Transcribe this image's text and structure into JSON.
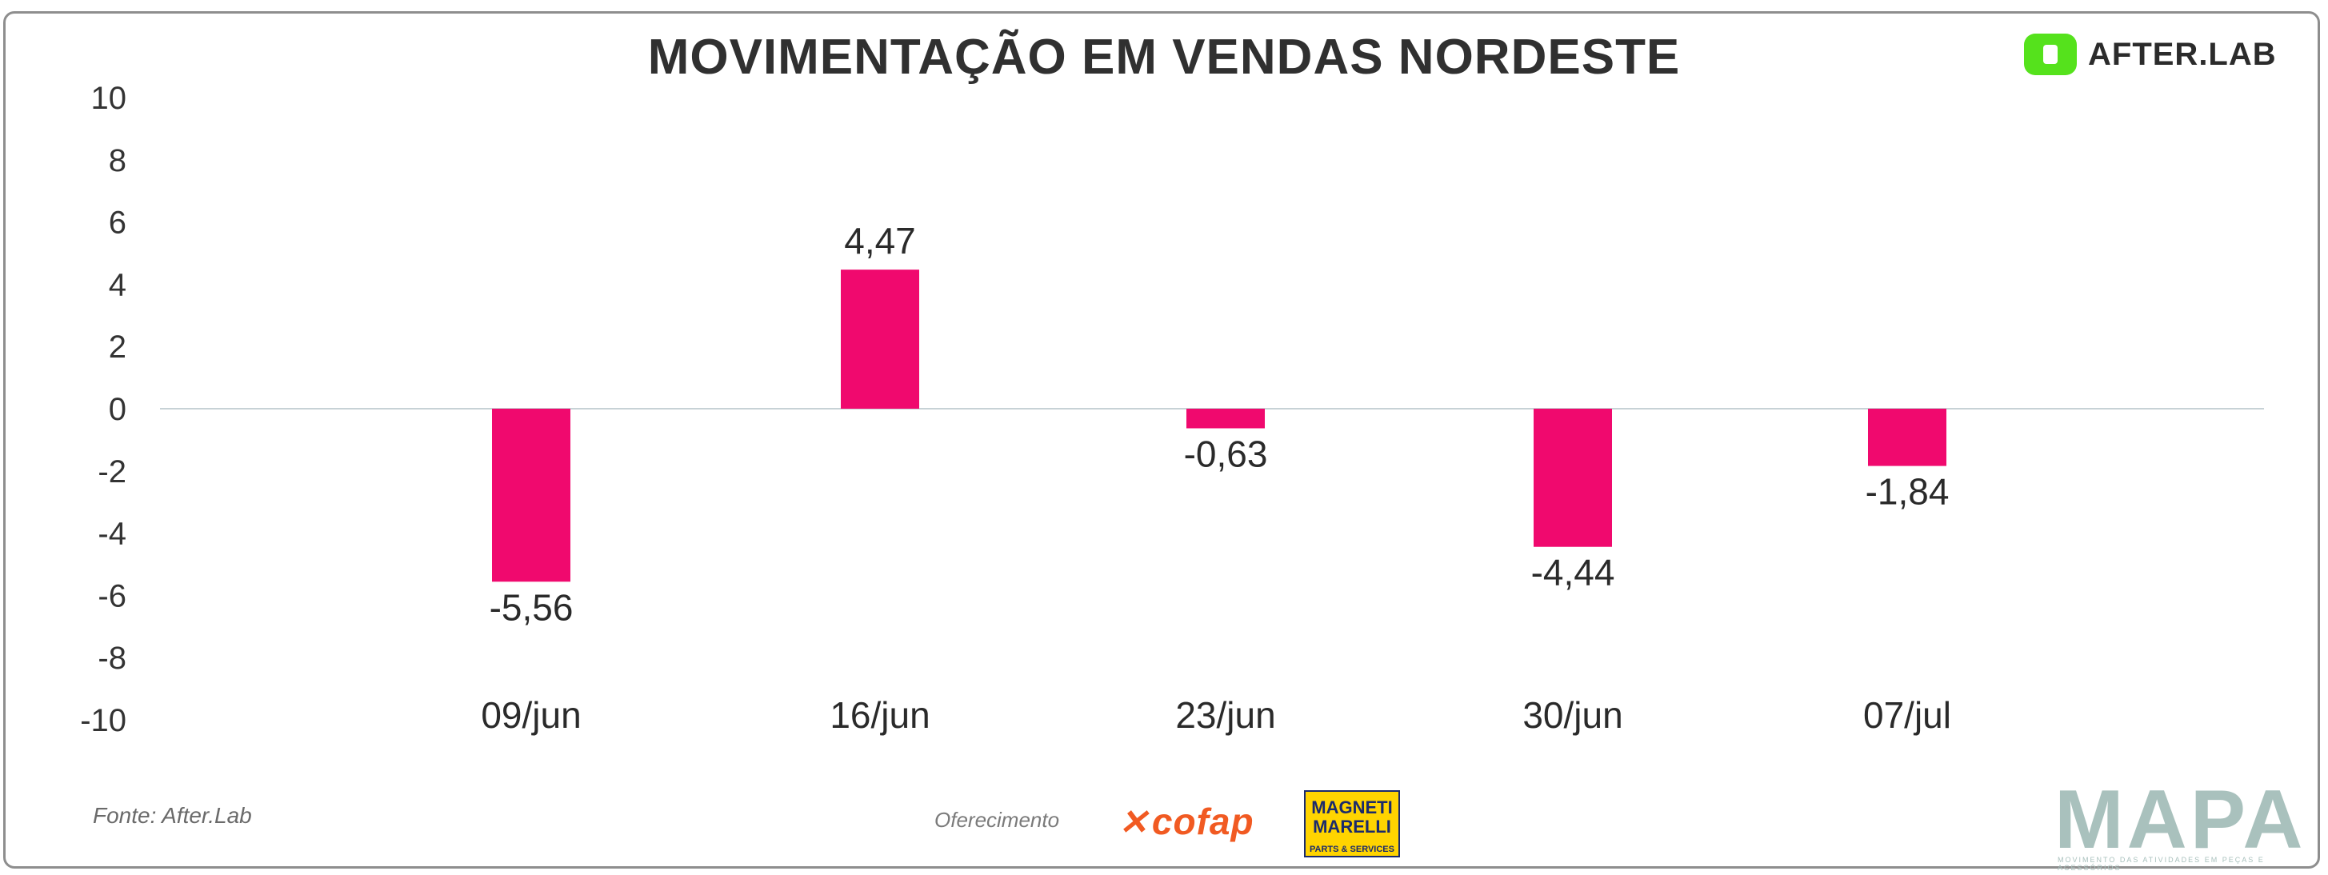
{
  "header": {
    "title": "MOVIMENTAÇÃO EM VENDAS NORDESTE",
    "brand": "AFTER.LAB"
  },
  "footer": {
    "source": "Fonte: After.Lab",
    "sponsor_label": "Oferecimento",
    "sponsor_1": "cofap",
    "sponsor_2_line1": "MAGNETI",
    "sponsor_2_line2": "MARELLI",
    "sponsor_2_sub": "PARTS & SERVICES",
    "publication": "MAPA",
    "publication_tagline": "MOVIMENTO DAS ATIVIDADES EM PEÇAS E ACESSÓRIOS"
  },
  "colors": {
    "bar": "#f0096e",
    "brand_green": "#55e21c",
    "mapa": "#a9c1bd",
    "cofap": "#f15a22"
  },
  "chart_data": {
    "type": "bar",
    "title": "MOVIMENTAÇÃO EM VENDAS NORDESTE",
    "categories": [
      "09/jun",
      "16/jun",
      "23/jun",
      "30/jun",
      "07/jul"
    ],
    "values": [
      -5.56,
      4.47,
      -0.63,
      -4.44,
      -1.84
    ],
    "value_labels": [
      "-5,56",
      "4,47",
      "-0,63",
      "-4,44",
      "-1,84"
    ],
    "ylim": [
      -10,
      10
    ],
    "yticks": [
      10,
      8,
      6,
      4,
      2,
      0,
      -2,
      -4,
      -6,
      -8,
      -10
    ],
    "xlabel": "",
    "ylabel": "",
    "grid": false,
    "legend": "none"
  }
}
